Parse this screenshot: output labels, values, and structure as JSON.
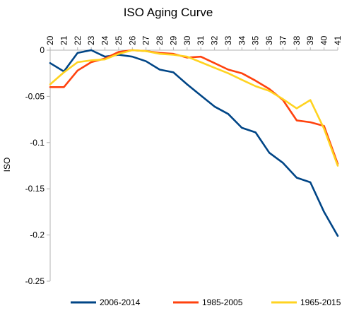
{
  "chart_data": {
    "type": "line",
    "title": "ISO Aging Curve",
    "xlabel": "",
    "ylabel": "ISO",
    "x_position": "top",
    "categories": [
      "20",
      "21",
      "22",
      "23",
      "24",
      "25",
      "26",
      "27",
      "28",
      "29",
      "30",
      "31",
      "32",
      "33",
      "34",
      "35",
      "36",
      "37",
      "38",
      "39",
      "40",
      "41"
    ],
    "ylim": [
      -0.25,
      0
    ],
    "yticks": [
      0,
      -0.05,
      -0.1,
      -0.15,
      -0.2,
      -0.25
    ],
    "ytick_labels": [
      "0",
      "-0.05",
      "-0.1",
      "-0.15",
      "-0.2",
      "-0.25"
    ],
    "grid": false,
    "legend": "bottom",
    "series": [
      {
        "name": "2006-2014",
        "color": "#004586",
        "values": [
          -0.014,
          -0.023,
          -0.003,
          0.0,
          -0.007,
          -0.005,
          -0.007,
          -0.012,
          -0.021,
          -0.024,
          -0.037,
          -0.049,
          -0.061,
          -0.069,
          -0.084,
          -0.089,
          -0.111,
          -0.122,
          -0.138,
          -0.143,
          -0.175,
          -0.201
        ]
      },
      {
        "name": "1985-2005",
        "color": "#ff420e",
        "values": [
          -0.04,
          -0.04,
          -0.022,
          -0.013,
          -0.009,
          -0.002,
          0.0,
          -0.001,
          -0.003,
          -0.004,
          -0.008,
          -0.007,
          -0.014,
          -0.021,
          -0.025,
          -0.033,
          -0.042,
          -0.054,
          -0.076,
          -0.078,
          -0.082,
          -0.123
        ]
      },
      {
        "name": "1965-2015",
        "color": "#ffd320",
        "values": [
          -0.037,
          -0.024,
          -0.013,
          -0.011,
          -0.01,
          -0.004,
          0.0,
          -0.001,
          -0.004,
          -0.005,
          -0.007,
          -0.013,
          -0.019,
          -0.025,
          -0.032,
          -0.039,
          -0.044,
          -0.053,
          -0.063,
          -0.054,
          -0.085,
          -0.125
        ]
      }
    ]
  }
}
